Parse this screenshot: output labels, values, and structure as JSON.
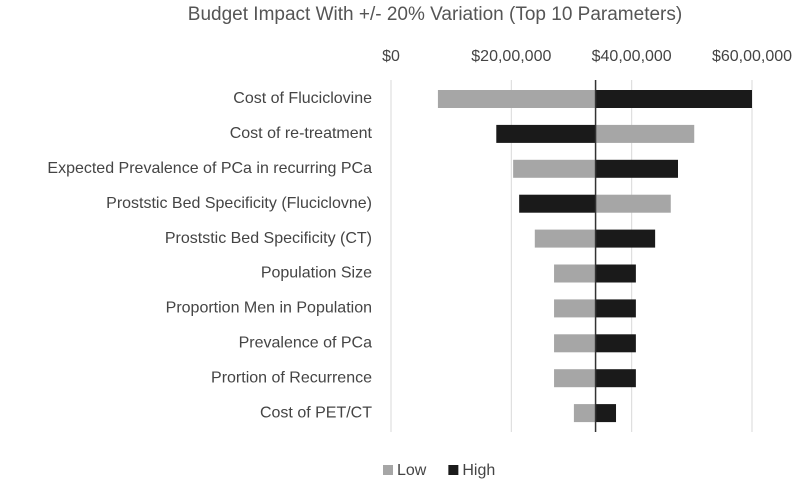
{
  "chart_data": {
    "type": "tornado",
    "title": "Budget Impact With +/- 20% Variation (Top 10 Parameters)",
    "categories": [
      "Cost of Fluciclovine",
      "Cost of re-treatment",
      "Expected Prevalence of PCa in recurring PCa",
      "Proststic Bed Specificity (Fluciclovne)",
      "Proststic Bed Specificity (CT)",
      "Population Size",
      "Proportion Men in Population",
      "Prevalence of PCa",
      "Prortion of Recurrence",
      "Cost of PET/CT"
    ],
    "base": 3400000,
    "series": [
      {
        "name": "Low",
        "color": "#a6a6a6",
        "values": [
          780000,
          5040000,
          2030000,
          4650000,
          2390000,
          2710000,
          2710000,
          2710000,
          2710000,
          3040000
        ]
      },
      {
        "name": "High",
        "color": "#1a1a1a",
        "values": [
          6000000,
          1750000,
          4770000,
          2130000,
          4390000,
          4070000,
          4070000,
          4070000,
          4070000,
          3740000
        ]
      }
    ],
    "xlim": [
      0,
      6000000
    ],
    "xticks": [
      {
        "value": 0,
        "label": "$0"
      },
      {
        "value": 2000000,
        "label": "$20,00,000"
      },
      {
        "value": 4000000,
        "label": "$40,00,000"
      },
      {
        "value": 6000000,
        "label": "$60,00,000"
      }
    ],
    "grid": true,
    "legend": "bottom"
  }
}
